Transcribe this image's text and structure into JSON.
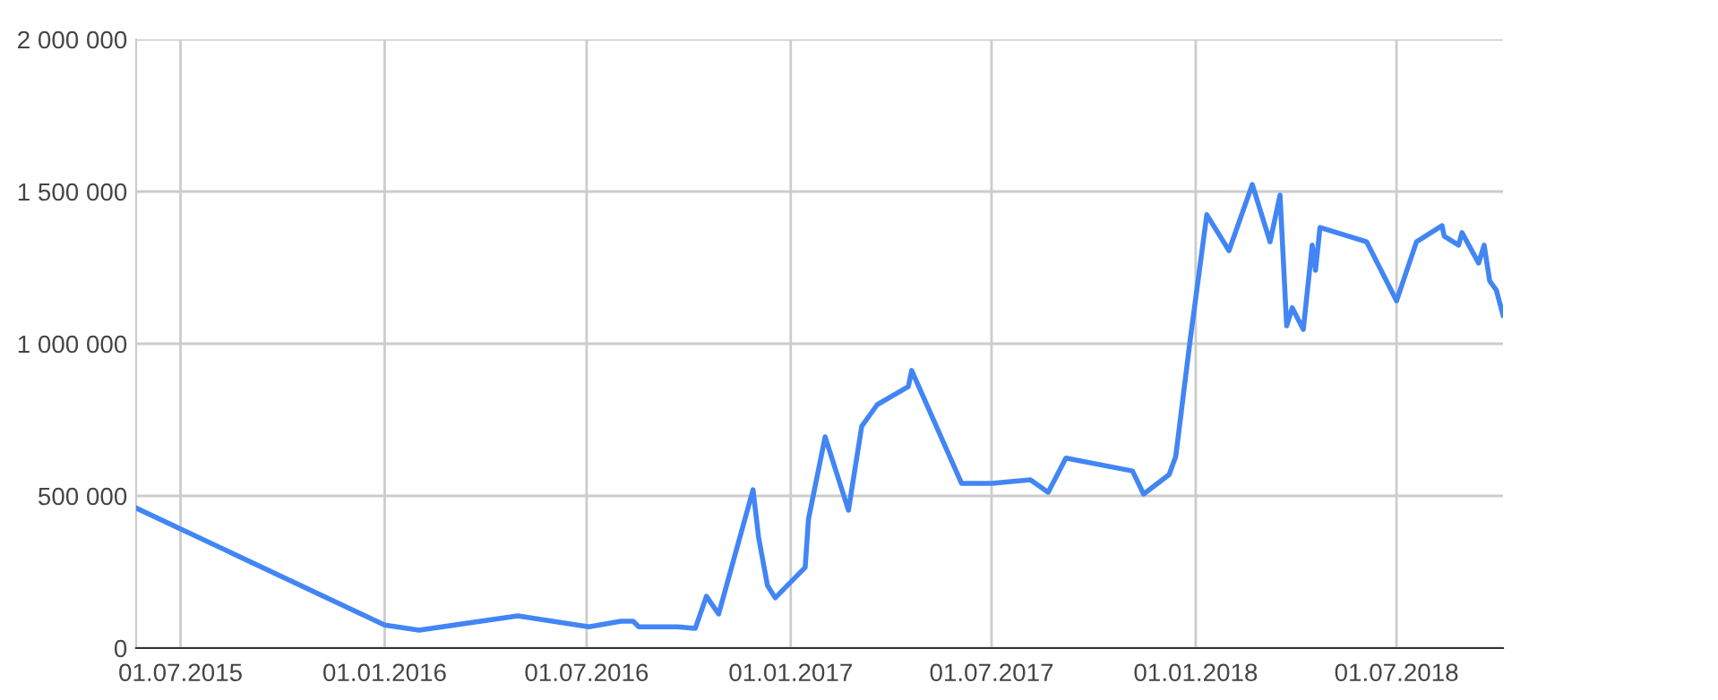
{
  "chart_data": {
    "type": "line",
    "x": [
      "2015-05-22",
      "2016-01-01",
      "2016-02-01",
      "2016-04-30",
      "2016-07-03",
      "2016-08-01",
      "2016-08-12",
      "2016-08-17",
      "2016-09-21",
      "2016-10-07",
      "2016-10-17",
      "2016-10-28",
      "2016-11-28",
      "2016-12-03",
      "2016-12-11",
      "2016-12-18",
      "2017-01-14",
      "2017-01-17",
      "2017-02-01",
      "2017-02-22",
      "2017-03-06",
      "2017-03-20",
      "2017-04-17",
      "2017-04-20",
      "2017-06-04",
      "2017-07-01",
      "2017-08-05",
      "2017-08-21",
      "2017-09-06",
      "2017-11-05",
      "2017-11-15",
      "2017-12-08",
      "2017-12-14",
      "2017-12-27",
      "2018-01-11",
      "2018-01-31",
      "2018-02-21",
      "2018-03-09",
      "2018-03-18",
      "2018-03-24",
      "2018-03-29",
      "2018-04-08",
      "2018-04-16",
      "2018-04-19",
      "2018-04-23",
      "2018-06-04",
      "2018-07-01",
      "2018-07-19",
      "2018-08-11",
      "2018-08-13",
      "2018-08-26",
      "2018-08-29",
      "2018-09-13",
      "2018-09-18",
      "2018-09-23",
      "2018-09-29",
      "2018-10-05"
    ],
    "series": [
      {
        "color": "#4285f4",
        "values": [
          460000,
          76000,
          59000,
          106000,
          70000,
          88000,
          88000,
          70000,
          70000,
          65000,
          170000,
          112000,
          520000,
          365000,
          206000,
          165000,
          265000,
          424000,
          694000,
          453000,
          729000,
          800000,
          859000,
          912000,
          541000,
          541000,
          553000,
          512000,
          624000,
          582000,
          506000,
          570000,
          629000,
          1012000,
          1424000,
          1306000,
          1523000,
          1335000,
          1488000,
          1059000,
          1118000,
          1047000,
          1324000,
          1241000,
          1382000,
          1335000,
          1141000,
          1335000,
          1388000,
          1353000,
          1324000,
          1365000,
          1265000,
          1324000,
          1206000,
          1176000,
          1094000
        ]
      }
    ],
    "xlim": [
      "2015-05-22",
      "2018-10-05"
    ],
    "xticks": [
      {
        "value": "2015-07-01",
        "label": "01.07.2015"
      },
      {
        "value": "2016-01-01",
        "label": "01.01.2016"
      },
      {
        "value": "2016-07-01",
        "label": "01.07.2016"
      },
      {
        "value": "2017-01-01",
        "label": "01.01.2017"
      },
      {
        "value": "2017-07-01",
        "label": "01.07.2017"
      },
      {
        "value": "2018-01-01",
        "label": "01.01.2018"
      },
      {
        "value": "2018-07-01",
        "label": "01.07.2018"
      }
    ],
    "ylim": [
      0,
      2000000
    ],
    "yticks": [
      0,
      {
        "value": 500000,
        "label": "500 000"
      },
      {
        "value": 1000000,
        "label": "1 000 000"
      },
      {
        "value": 1500000,
        "label": "1 500 000"
      },
      {
        "value": 2000000,
        "label": "2 000 000"
      }
    ],
    "grid": true,
    "marker": "none",
    "line_style": "solid"
  }
}
